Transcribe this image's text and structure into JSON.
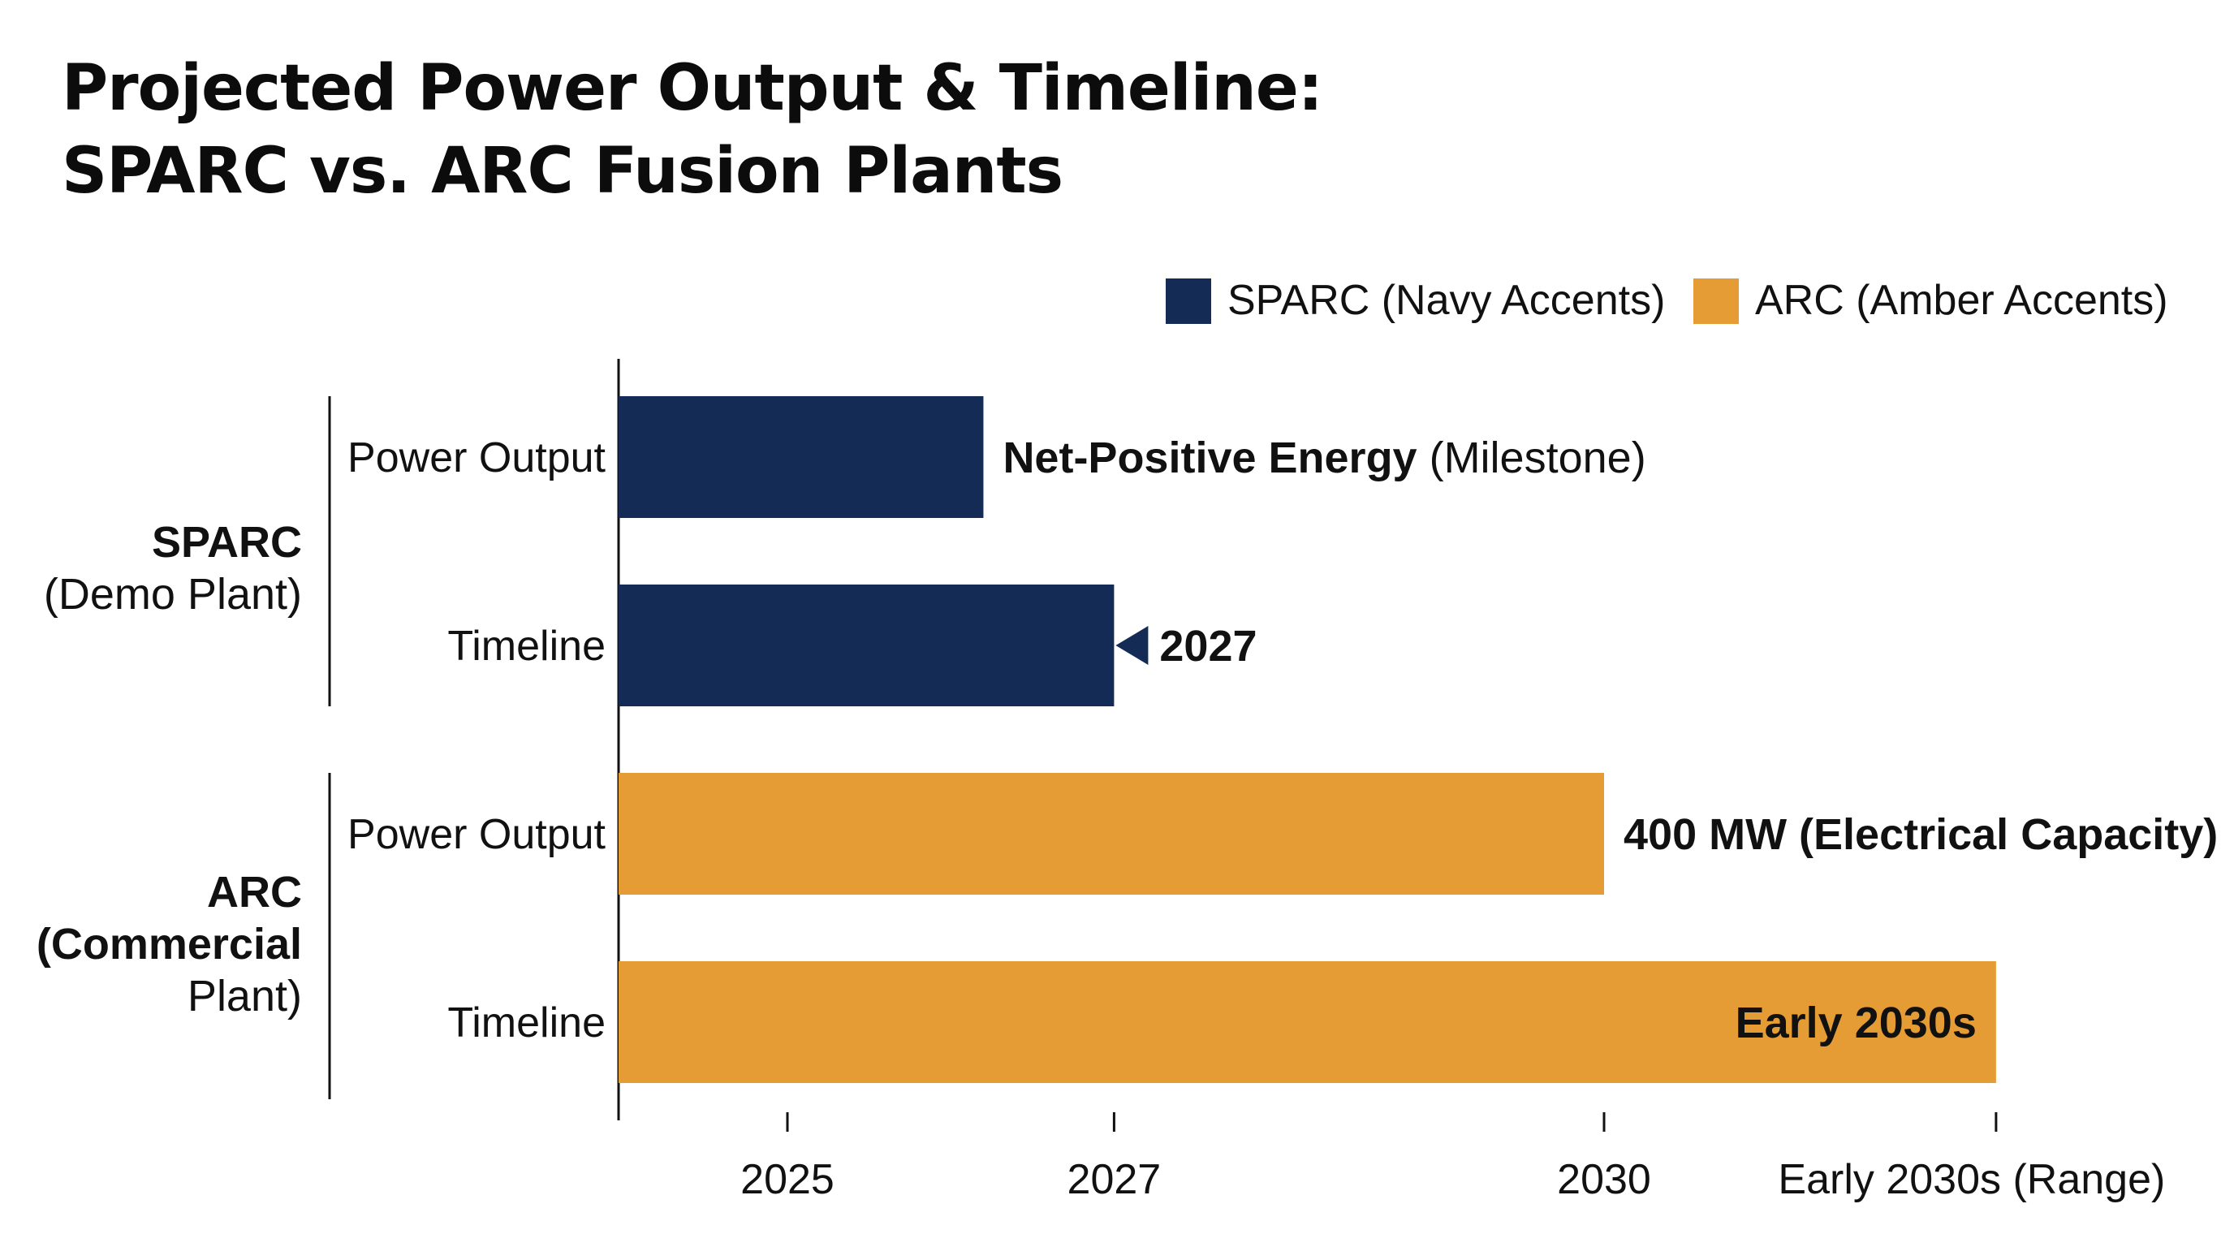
{
  "title": [
    "Projected Power Output & Timeline:",
    "SPARC vs. ARC Fusion Plants"
  ],
  "legend": [
    {
      "label": "SPARC (Navy Accents)",
      "color": "#142b55"
    },
    {
      "label": "ARC (Amber Accents)",
      "color": "#e69c35"
    }
  ],
  "chart_data": {
    "type": "bar",
    "orientation": "horizontal",
    "groups": [
      {
        "name_lines": [
          {
            "text": "SPARC",
            "bold": true
          },
          {
            "text": "(Demo Plant)",
            "bold": false
          }
        ],
        "color": "#142b55",
        "rows": [
          {
            "label": "Power Output",
            "value": 2026.2,
            "annotation": [
              {
                "text": "Net-Positive Energy",
                "bold": true
              },
              {
                "text": " (Milestone)",
                "bold": false
              }
            ],
            "annotation_position": "outside"
          },
          {
            "label": "Timeline",
            "value": 2027,
            "annotation": [
              {
                "text": "2027",
                "bold": true
              }
            ],
            "annotation_position": "outside-arrow"
          }
        ]
      },
      {
        "name_lines": [
          {
            "text": "ARC",
            "bold": true
          },
          {
            "text": "(Commercial",
            "bold": true
          },
          {
            "text": "Plant)",
            "bold": false
          }
        ],
        "color": "#e69c35",
        "rows": [
          {
            "label": "Power Output",
            "value": 2030,
            "annotation": [
              {
                "text": "400 MW (Electrical Capacity)",
                "bold": true
              }
            ],
            "annotation_position": "outside"
          },
          {
            "label": "Timeline",
            "value": 2032.4,
            "annotation": [
              {
                "text": "Early 2030s",
                "bold": true
              }
            ],
            "annotation_position": "inside-end"
          }
        ]
      }
    ],
    "x_axis": {
      "range": [
        2024,
        2032.4
      ],
      "ticks": [
        {
          "value": 2025,
          "label": "2025"
        },
        {
          "value": 2027,
          "label": "2027"
        },
        {
          "value": 2030,
          "label": "2030"
        },
        {
          "value": 2032.4,
          "label": "Early 2030s (Range)"
        }
      ]
    },
    "grid": false,
    "legend_position": "top-right"
  }
}
